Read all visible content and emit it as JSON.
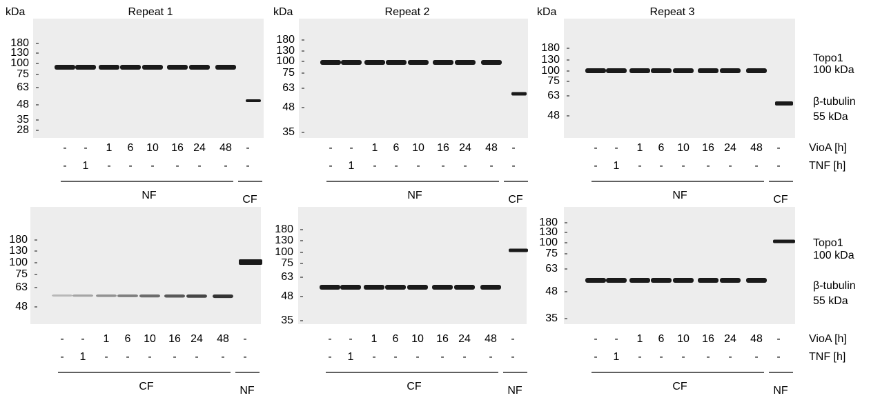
{
  "panels": [
    {
      "title": "Repeat 1",
      "unit": "kDa",
      "markers": [
        "180",
        "130",
        "100",
        "75",
        "63",
        "48",
        "35",
        "28"
      ],
      "vioa_h": [
        "-",
        "-",
        "1",
        "6",
        "10",
        "16",
        "24",
        "48",
        "-"
      ],
      "tnf_h": [
        "-",
        "1",
        "-",
        "-",
        "-",
        "-",
        "-",
        "-",
        "-"
      ],
      "main_fraction": "NF",
      "side_fraction": "CF"
    },
    {
      "title": "Repeat 2",
      "unit": "kDa",
      "markers": [
        "180",
        "130",
        "100",
        "75",
        "63",
        "48",
        "35"
      ],
      "vioa_h": [
        "-",
        "-",
        "1",
        "6",
        "10",
        "16",
        "24",
        "48",
        "-"
      ],
      "tnf_h": [
        "-",
        "1",
        "-",
        "-",
        "-",
        "-",
        "-",
        "-",
        "-"
      ],
      "main_fraction": "NF",
      "side_fraction": "CF"
    },
    {
      "title": "Repeat 3",
      "unit": "kDa",
      "markers": [
        "180",
        "130",
        "100",
        "75",
        "63",
        "48"
      ],
      "vioa_h": [
        "-",
        "-",
        "1",
        "6",
        "10",
        "16",
        "24",
        "48",
        "-"
      ],
      "tnf_h": [
        "-",
        "1",
        "-",
        "-",
        "-",
        "-",
        "-",
        "-",
        "-"
      ],
      "main_fraction": "NF",
      "side_fraction": "CF"
    },
    {
      "markers": [
        "180",
        "130",
        "100",
        "75",
        "63",
        "48"
      ],
      "vioa_h": [
        "-",
        "-",
        "1",
        "6",
        "10",
        "16",
        "24",
        "48",
        "-"
      ],
      "tnf_h": [
        "-",
        "1",
        "-",
        "-",
        "-",
        "-",
        "-",
        "-",
        "-"
      ],
      "main_fraction": "CF",
      "side_fraction": "NF"
    },
    {
      "markers": [
        "180",
        "130",
        "100",
        "75",
        "63",
        "48",
        "35"
      ],
      "vioa_h": [
        "-",
        "-",
        "1",
        "6",
        "10",
        "16",
        "24",
        "48",
        "-"
      ],
      "tnf_h": [
        "-",
        "1",
        "-",
        "-",
        "-",
        "-",
        "-",
        "-",
        "-"
      ],
      "main_fraction": "CF",
      "side_fraction": "NF"
    },
    {
      "markers": [
        "180",
        "130",
        "100",
        "75",
        "63",
        "48",
        "35"
      ],
      "vioa_h": [
        "-",
        "-",
        "1",
        "6",
        "10",
        "16",
        "24",
        "48",
        "-"
      ],
      "tnf_h": [
        "-",
        "1",
        "-",
        "-",
        "-",
        "-",
        "-",
        "-",
        "-"
      ],
      "main_fraction": "CF",
      "side_fraction": "NF"
    }
  ],
  "row_labels": [
    {
      "protein_1": "Topo1",
      "size_1": "100 kDa",
      "protein_2": "β-tubulin",
      "size_2": "55 kDa",
      "treatment_1": "VioA [h]",
      "treatment_2": "TNF [h]"
    },
    {
      "protein_1": "Topo1",
      "size_1": "100 kDa",
      "protein_2": "β-tubulin",
      "size_2": "55 kDa",
      "treatment_1": "VioA [h]",
      "treatment_2": "TNF [h]"
    }
  ]
}
